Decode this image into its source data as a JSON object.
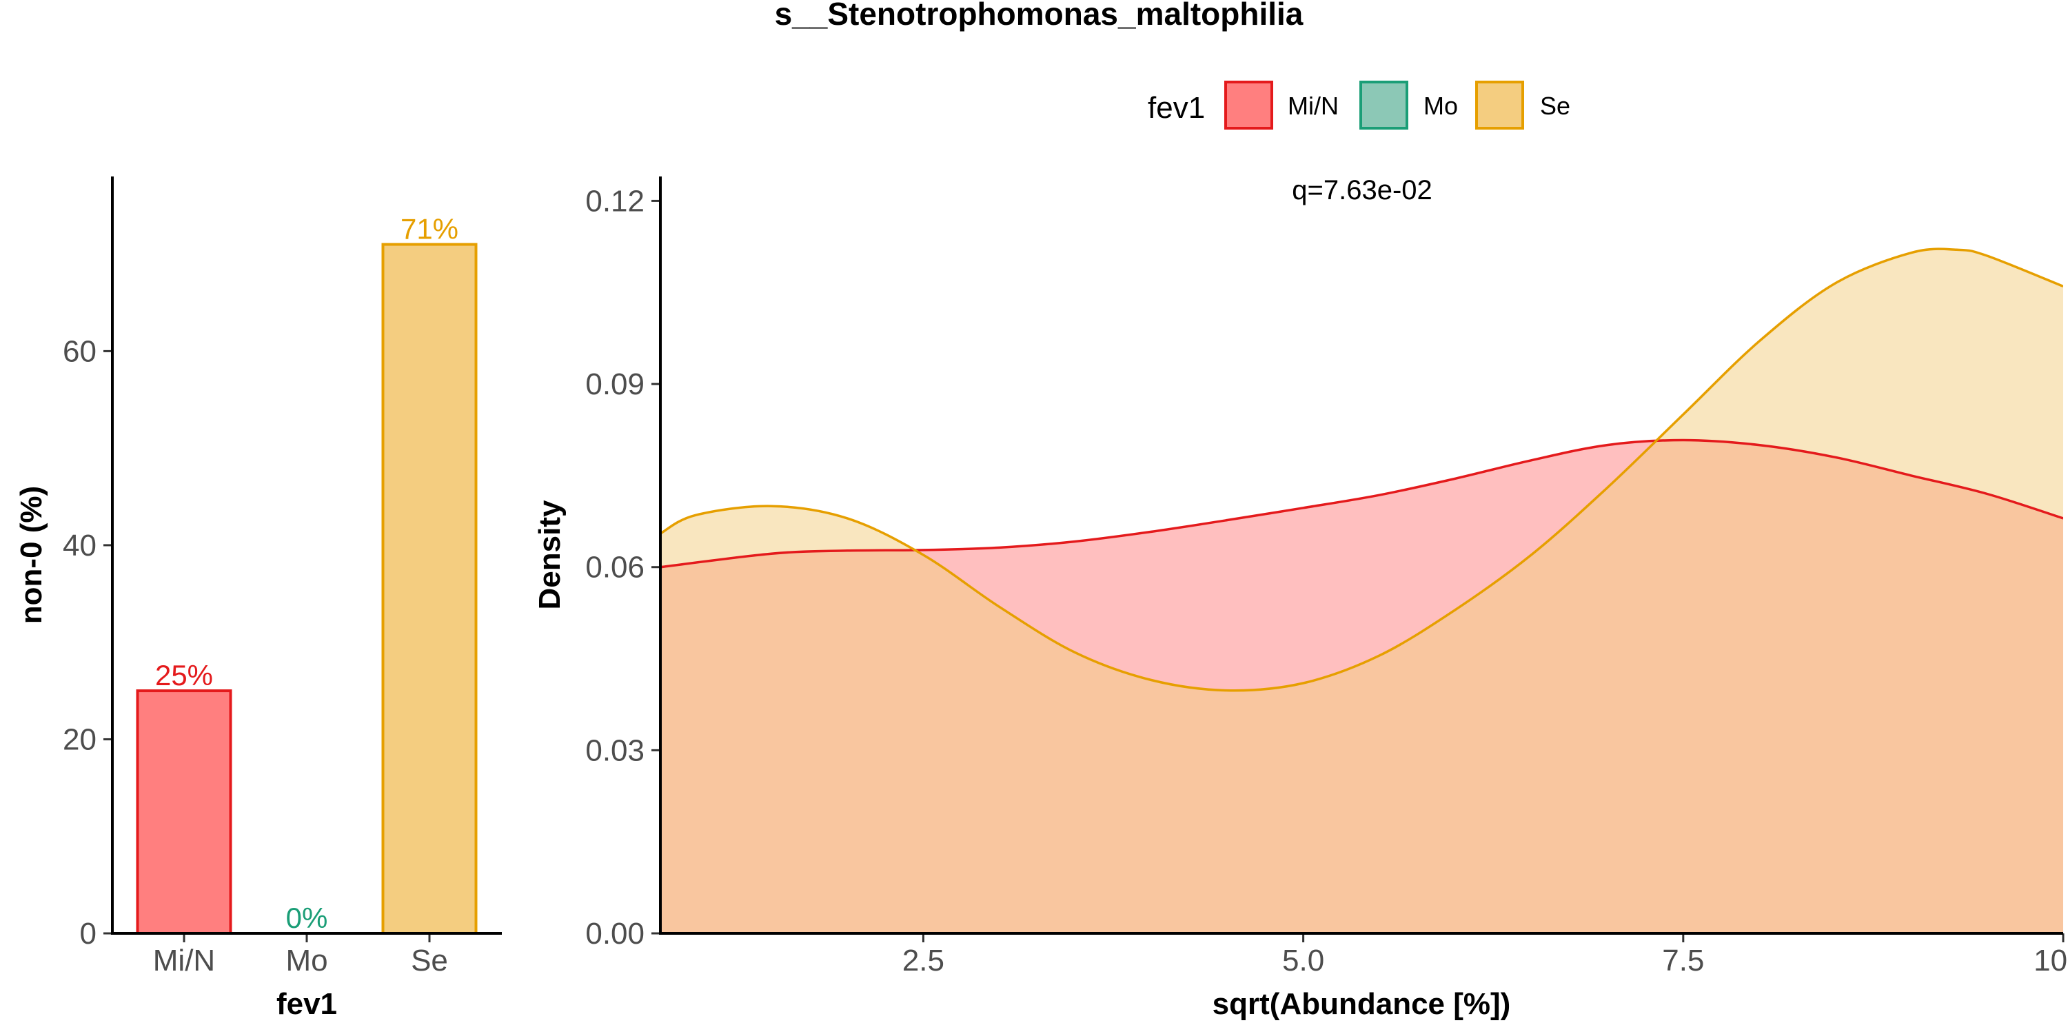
{
  "title": "s__Stenotrophomonas_maltophilia",
  "legend": {
    "title": "fev1",
    "items": [
      {
        "label": "Mi/N",
        "fill": "#FF7F7F",
        "stroke": "#E41A1C"
      },
      {
        "label": "Mo",
        "fill": "#8CC8B6",
        "stroke": "#1B9E77"
      },
      {
        "label": "Se",
        "fill": "#F4CD80",
        "stroke": "#E69F00"
      }
    ]
  },
  "chart_data": [
    {
      "type": "bar",
      "categories": [
        "Mi/N",
        "Mo",
        "Se"
      ],
      "values": [
        25,
        0,
        71
      ],
      "data_labels": [
        "25%",
        "0%",
        "71%"
      ],
      "label_colors": [
        "#E41A1C",
        "#1B9E77",
        "#E69F00"
      ],
      "fills": [
        "#FF7F7F",
        "#8CC8B6",
        "#F4CD80"
      ],
      "strokes": [
        "#E41A1C",
        "#1B9E77",
        "#E69F00"
      ],
      "xlabel": "fev1",
      "ylabel": "non-0 (%)",
      "ylim": [
        0,
        78
      ],
      "yticks": [
        0,
        20,
        40,
        60
      ],
      "ytick_labels": [
        "0",
        "20",
        "40",
        "60"
      ]
    },
    {
      "type": "area",
      "xlabel": "sqrt(Abundance [%])",
      "ylabel": "Density",
      "xlim": [
        0.77,
        10.0
      ],
      "ylim": [
        0.0,
        0.124
      ],
      "xticks": [
        2.5,
        5.0,
        7.5,
        10.0
      ],
      "xtick_labels": [
        "2.5",
        "5.0",
        "7.5",
        "10.0"
      ],
      "yticks": [
        0.0,
        0.03,
        0.06,
        0.09,
        0.12
      ],
      "ytick_labels": [
        "0.00",
        "0.03",
        "0.06",
        "0.09",
        "0.12"
      ],
      "annotation": "q=7.63e-02",
      "series": [
        {
          "name": "Mi/N",
          "fill": "#FF7F7F",
          "stroke": "#E41A1C",
          "x": [
            0.77,
            1.5,
            2.0,
            2.5,
            3.0,
            3.5,
            4.0,
            4.5,
            5.0,
            5.5,
            6.0,
            6.5,
            7.0,
            7.5,
            8.0,
            8.5,
            9.0,
            9.5,
            10.0
          ],
          "y": [
            0.06,
            0.0622,
            0.0627,
            0.0628,
            0.0632,
            0.0642,
            0.0658,
            0.0677,
            0.0697,
            0.0718,
            0.0745,
            0.0775,
            0.08,
            0.0808,
            0.08,
            0.078,
            0.075,
            0.072,
            0.068
          ]
        },
        {
          "name": "Se",
          "fill": "#F4CD80",
          "stroke": "#E69F00",
          "x": [
            0.77,
            1.0,
            1.5,
            2.0,
            2.5,
            3.0,
            3.5,
            4.0,
            4.5,
            5.0,
            5.5,
            6.0,
            6.5,
            7.0,
            7.5,
            8.0,
            8.5,
            9.0,
            9.3,
            9.5,
            10.0
          ],
          "y": [
            0.0655,
            0.0685,
            0.07,
            0.068,
            0.062,
            0.0535,
            0.046,
            0.0415,
            0.0398,
            0.041,
            0.0455,
            0.053,
            0.062,
            0.073,
            0.085,
            0.097,
            0.1065,
            0.1115,
            0.112,
            0.111,
            0.106
          ]
        }
      ]
    }
  ]
}
